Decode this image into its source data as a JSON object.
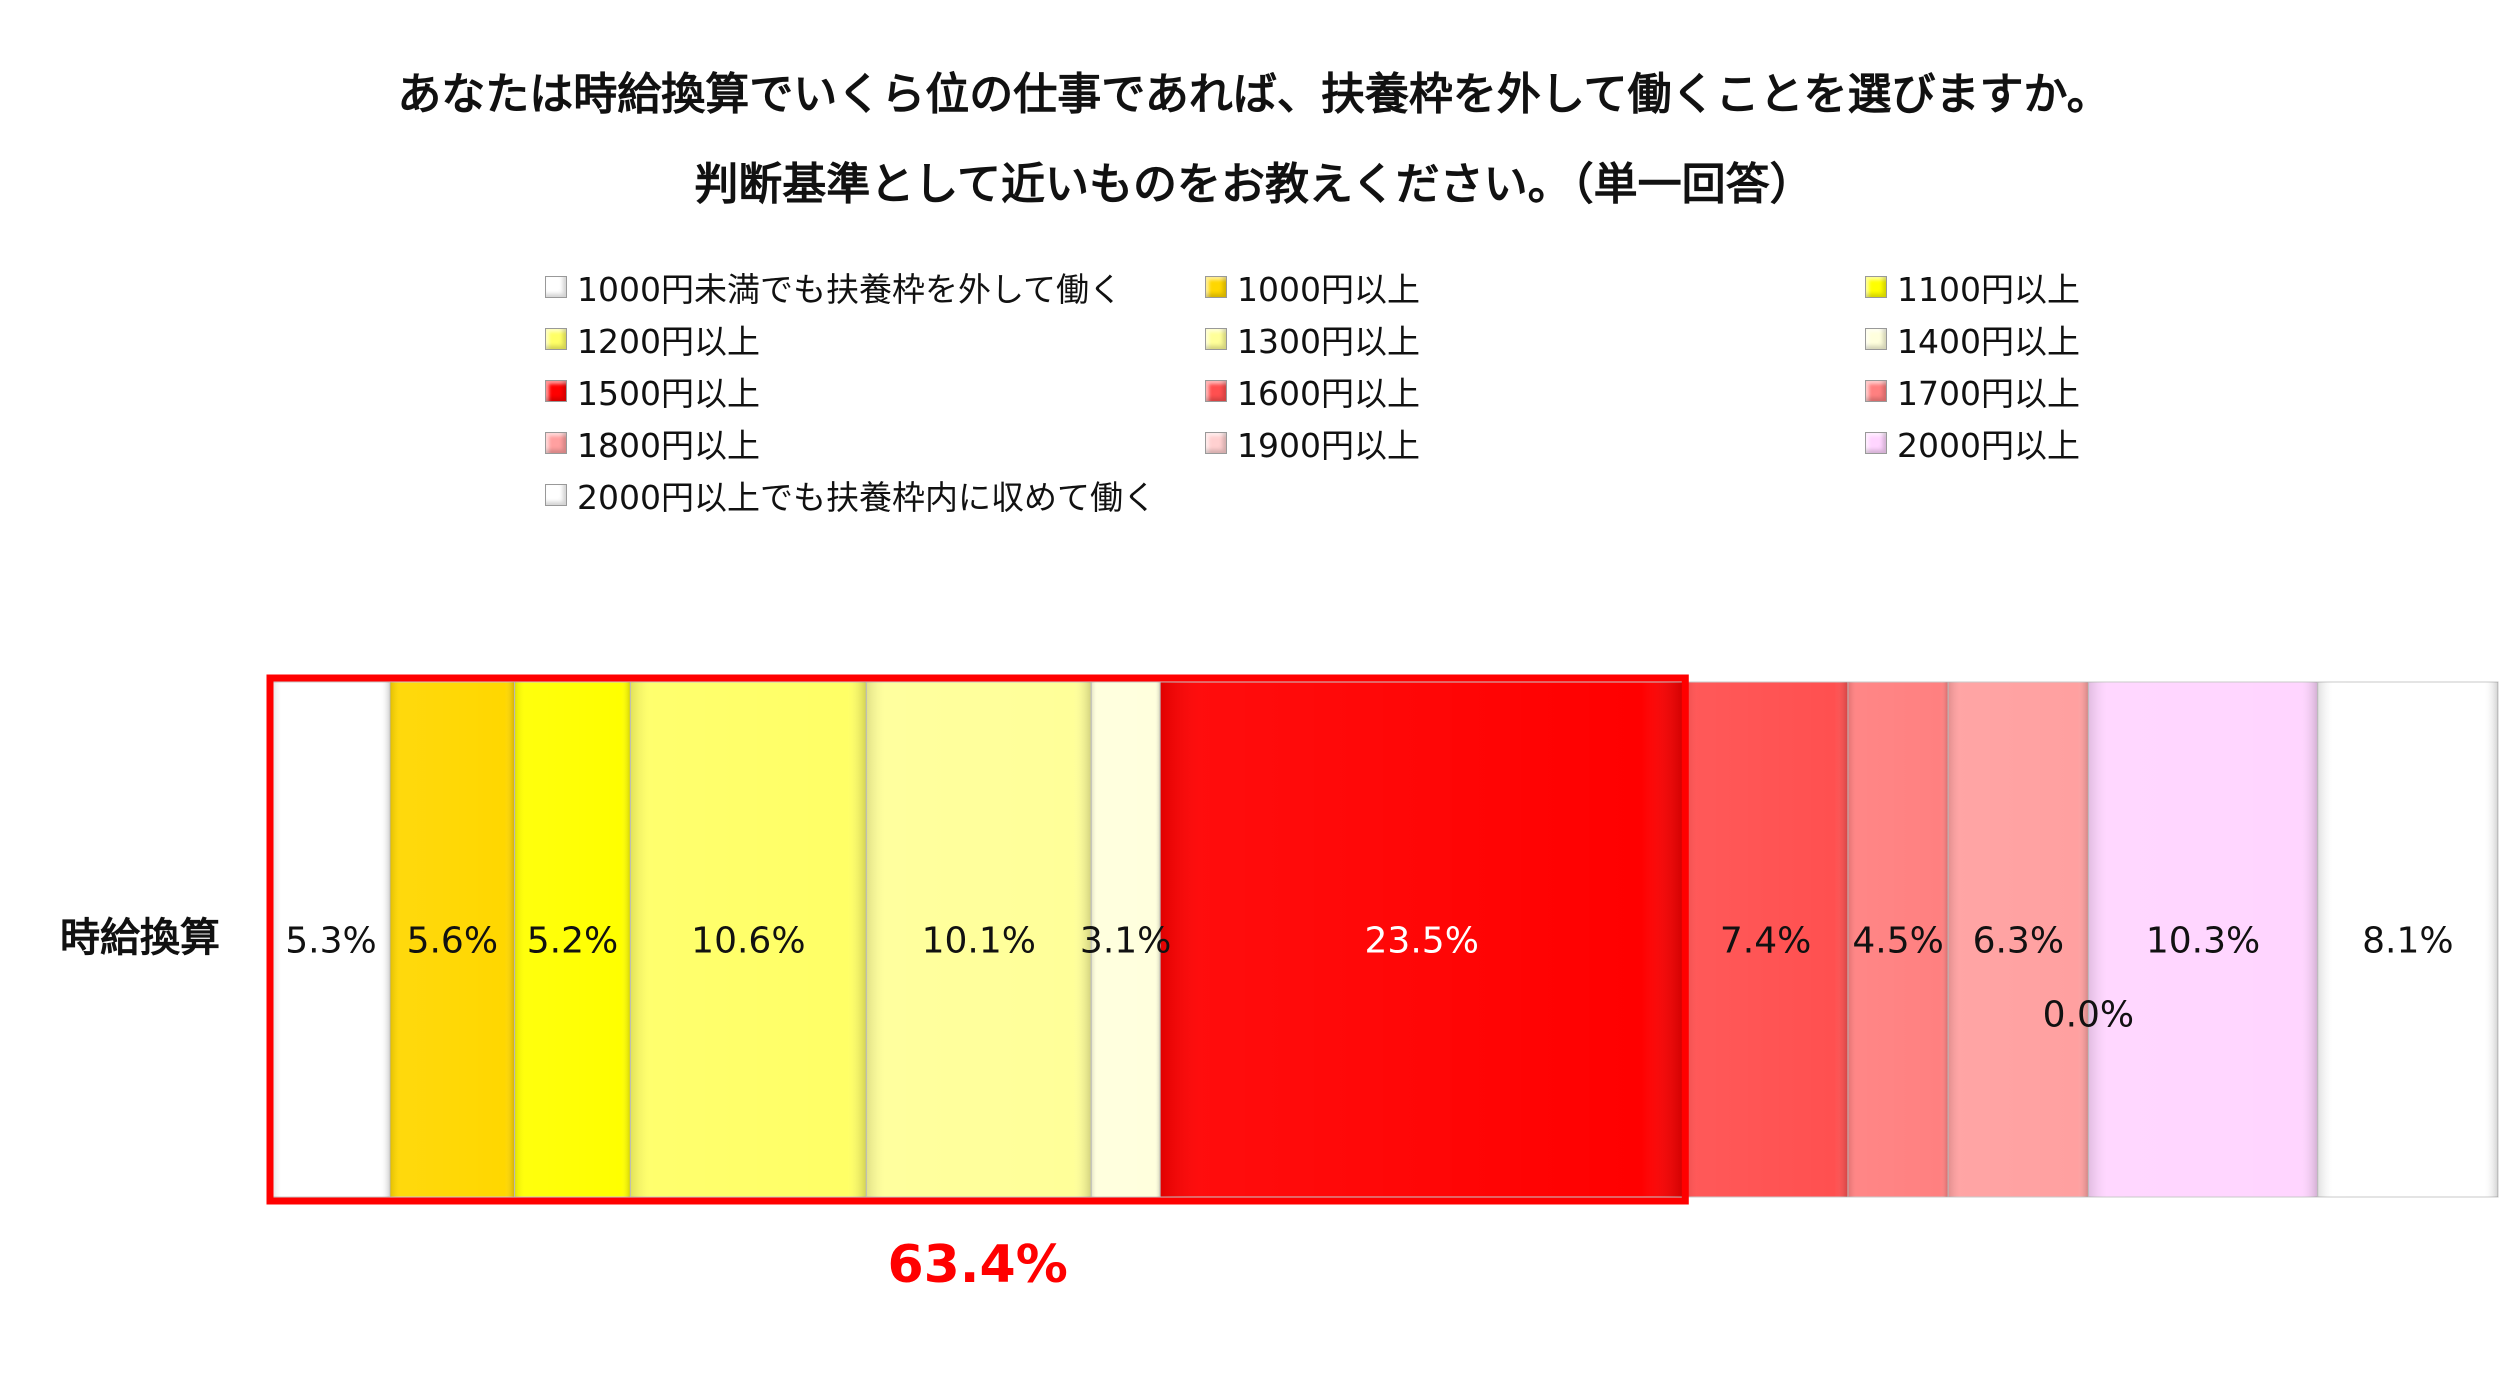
{
  "title_line1": "あなたは時給換算でいくら位の仕事であれば、扶養枠を外して働くことを選びますか。",
  "title_line2": "判断基準として近いものをお教えください。（単一回答）",
  "chart_data": {
    "type": "bar",
    "stacked": "100%",
    "orientation": "horizontal",
    "categories": [
      "時給換算"
    ],
    "series": [
      {
        "name": "1000円未満でも扶養枠を外して働く",
        "values": [
          5.3
        ],
        "color": "#ffffff",
        "label": "5.3%"
      },
      {
        "name": "1000円以上",
        "values": [
          5.6
        ],
        "color": "#ffd700",
        "label": "5.6%"
      },
      {
        "name": "1100円以上",
        "values": [
          5.2
        ],
        "color": "#ffff00",
        "label": "5.2%"
      },
      {
        "name": "1200円以上",
        "values": [
          10.6
        ],
        "color": "#ffff66",
        "label": "10.6%"
      },
      {
        "name": "1300円以上",
        "values": [
          10.1
        ],
        "color": "#ffff99",
        "label": "10.1%"
      },
      {
        "name": "1400円以上",
        "values": [
          3.1
        ],
        "color": "#ffffdd",
        "label": "3.1%"
      },
      {
        "name": "1500円以上",
        "values": [
          23.5
        ],
        "color": "#ff0000",
        "label": "23.5%"
      },
      {
        "name": "1600円以上",
        "values": [
          7.4
        ],
        "color": "#ff5050",
        "label": "7.4%"
      },
      {
        "name": "1700円以上",
        "values": [
          4.5
        ],
        "color": "#ff8080",
        "label": "4.5%"
      },
      {
        "name": "1800円以上",
        "values": [
          6.3
        ],
        "color": "#ffa0a0",
        "label": "6.3%"
      },
      {
        "name": "1900円以上",
        "values": [
          0.0
        ],
        "color": "#ffd0d0",
        "label": "0.0%"
      },
      {
        "name": "2000円以上",
        "values": [
          10.3
        ],
        "color": "#ffd5ff",
        "label": "10.3%"
      },
      {
        "name": "2000円以上でも扶養枠内に収めて働く",
        "values": [
          8.1
        ],
        "color": "#ffffff",
        "label": "8.1%"
      }
    ],
    "legend_position": "top",
    "highlight": {
      "from_series": 0,
      "to_series": 6,
      "total_label": "63.4%",
      "color": "#ff0000"
    },
    "grid": false
  }
}
